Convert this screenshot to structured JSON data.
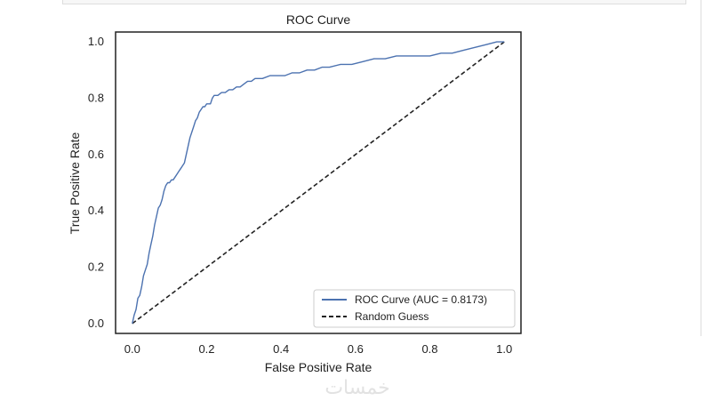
{
  "chart_data": {
    "type": "line",
    "title": "ROC Curve",
    "xlabel": "False Positive Rate",
    "ylabel": "True Positive Rate",
    "xlim": [
      -0.045,
      1.045
    ],
    "ylim": [
      -0.035,
      1.035
    ],
    "xticks": [
      0.0,
      0.2,
      0.4,
      0.6,
      0.8,
      1.0
    ],
    "xtick_labels": [
      "0.0",
      "0.2",
      "0.4",
      "0.6",
      "0.8",
      "1.0"
    ],
    "yticks": [
      0.0,
      0.2,
      0.4,
      0.6,
      0.8,
      1.0
    ],
    "ytick_labels": [
      "0.0",
      "0.2",
      "0.4",
      "0.6",
      "0.8",
      "1.0"
    ],
    "grid": false,
    "legend_position": "lower-right",
    "series": [
      {
        "name": "ROC Curve (AUC = 0.8173)",
        "color": "#4c72b0",
        "style": "solid",
        "x": [
          0.0,
          0.005,
          0.01,
          0.015,
          0.02,
          0.025,
          0.03,
          0.035,
          0.04,
          0.045,
          0.05,
          0.055,
          0.06,
          0.065,
          0.07,
          0.075,
          0.08,
          0.085,
          0.09,
          0.095,
          0.1,
          0.105,
          0.11,
          0.115,
          0.12,
          0.125,
          0.13,
          0.135,
          0.14,
          0.145,
          0.15,
          0.155,
          0.16,
          0.165,
          0.17,
          0.175,
          0.18,
          0.185,
          0.19,
          0.195,
          0.2,
          0.205,
          0.21,
          0.215,
          0.22,
          0.23,
          0.24,
          0.25,
          0.26,
          0.27,
          0.28,
          0.29,
          0.3,
          0.31,
          0.32,
          0.33,
          0.35,
          0.37,
          0.39,
          0.41,
          0.43,
          0.45,
          0.47,
          0.49,
          0.51,
          0.53,
          0.56,
          0.59,
          0.62,
          0.65,
          0.68,
          0.71,
          0.74,
          0.77,
          0.8,
          0.83,
          0.86,
          0.89,
          0.92,
          0.95,
          0.98,
          1.0
        ],
        "y": [
          0.0,
          0.03,
          0.05,
          0.09,
          0.1,
          0.13,
          0.17,
          0.19,
          0.21,
          0.25,
          0.28,
          0.31,
          0.35,
          0.38,
          0.41,
          0.42,
          0.44,
          0.47,
          0.49,
          0.5,
          0.5,
          0.51,
          0.51,
          0.52,
          0.53,
          0.54,
          0.55,
          0.56,
          0.57,
          0.6,
          0.63,
          0.66,
          0.68,
          0.7,
          0.72,
          0.73,
          0.75,
          0.76,
          0.77,
          0.77,
          0.78,
          0.78,
          0.78,
          0.8,
          0.81,
          0.81,
          0.82,
          0.82,
          0.83,
          0.83,
          0.84,
          0.84,
          0.85,
          0.86,
          0.86,
          0.87,
          0.87,
          0.88,
          0.88,
          0.88,
          0.89,
          0.89,
          0.9,
          0.9,
          0.91,
          0.91,
          0.92,
          0.92,
          0.93,
          0.94,
          0.94,
          0.95,
          0.95,
          0.95,
          0.95,
          0.96,
          0.96,
          0.97,
          0.98,
          0.99,
          1.0,
          1.0
        ]
      },
      {
        "name": "Random Guess",
        "color": "#222222",
        "style": "dashed",
        "x": [
          0.0,
          1.0
        ],
        "y": [
          0.0,
          1.0
        ]
      }
    ]
  },
  "watermark": "خمسات"
}
